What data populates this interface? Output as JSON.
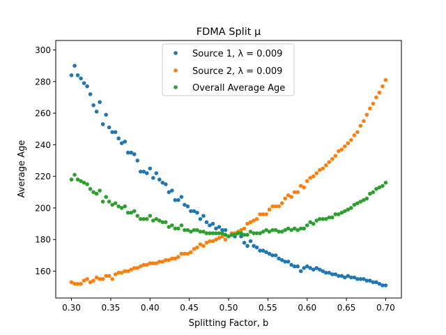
{
  "chart_data": {
    "type": "scatter",
    "title": "FDMA Split μ",
    "xlabel": "Splitting Factor, b",
    "ylabel": "Average Age",
    "xlim": [
      0.28,
      0.72
    ],
    "ylim": [
      143,
      306
    ],
    "xticks": [
      0.3,
      0.35,
      0.4,
      0.45,
      0.5,
      0.55,
      0.6,
      0.65,
      0.7
    ],
    "xtick_labels": [
      "0.30",
      "0.35",
      "0.40",
      "0.45",
      "0.50",
      "0.55",
      "0.60",
      "0.65",
      "0.70"
    ],
    "yticks": [
      160,
      180,
      200,
      220,
      240,
      260,
      280,
      300
    ],
    "ytick_labels": [
      "160",
      "180",
      "200",
      "220",
      "240",
      "260",
      "280",
      "300"
    ],
    "grid": false,
    "legend_position": "top-center",
    "x": [
      0.3,
      0.304,
      0.308,
      0.312,
      0.316,
      0.32,
      0.324,
      0.328,
      0.332,
      0.336,
      0.34,
      0.344,
      0.348,
      0.352,
      0.356,
      0.36,
      0.364,
      0.368,
      0.372,
      0.376,
      0.38,
      0.384,
      0.388,
      0.392,
      0.396,
      0.4,
      0.404,
      0.408,
      0.412,
      0.416,
      0.42,
      0.424,
      0.428,
      0.432,
      0.436,
      0.44,
      0.444,
      0.448,
      0.452,
      0.456,
      0.46,
      0.464,
      0.468,
      0.472,
      0.476,
      0.48,
      0.484,
      0.488,
      0.492,
      0.496,
      0.5,
      0.504,
      0.508,
      0.512,
      0.516,
      0.52,
      0.524,
      0.528,
      0.532,
      0.536,
      0.54,
      0.544,
      0.548,
      0.552,
      0.556,
      0.56,
      0.564,
      0.568,
      0.572,
      0.576,
      0.58,
      0.584,
      0.588,
      0.592,
      0.596,
      0.6,
      0.604,
      0.608,
      0.612,
      0.616,
      0.62,
      0.624,
      0.628,
      0.632,
      0.636,
      0.64,
      0.644,
      0.648,
      0.652,
      0.656,
      0.66,
      0.664,
      0.668,
      0.672,
      0.676,
      0.68,
      0.684,
      0.688,
      0.692,
      0.696,
      0.7
    ],
    "series": [
      {
        "name": "Source 1, λ = 0.009",
        "color": "#1f77b4",
        "values": [
          284,
          290,
          284,
          282,
          279,
          277,
          272,
          265,
          261,
          267,
          253,
          259,
          251,
          248,
          248,
          244,
          241,
          242,
          235,
          235,
          234,
          230,
          223,
          223,
          222,
          225,
          219,
          222,
          218,
          216,
          215,
          210,
          211,
          205,
          205,
          207,
          202,
          201,
          198,
          198,
          197,
          193,
          195,
          191,
          189,
          190,
          187,
          188,
          186,
          186,
          182,
          183,
          182,
          184,
          182,
          178,
          176,
          179,
          176,
          175,
          173,
          173,
          172,
          171,
          170,
          170,
          168,
          167,
          166,
          166,
          164,
          163,
          163,
          160,
          162,
          163,
          162,
          161,
          162,
          161,
          160,
          159,
          159,
          158,
          158,
          157,
          157,
          156,
          157,
          156,
          156,
          155,
          155,
          155,
          154,
          154,
          153,
          153,
          152,
          151,
          151
        ]
      },
      {
        "name": "Source 2, λ = 0.009",
        "color": "#ff7f0e",
        "values": [
          153,
          152,
          152,
          152,
          154,
          155,
          153,
          154,
          156,
          155,
          155,
          157,
          157,
          155,
          158,
          159,
          159,
          160,
          160,
          161,
          162,
          162,
          163,
          164,
          164,
          165,
          165,
          165,
          166,
          166,
          167,
          167,
          168,
          168,
          169,
          171,
          171,
          171,
          172,
          174,
          175,
          177,
          176,
          178,
          179,
          179,
          180,
          181,
          182,
          180,
          182,
          184,
          184,
          185,
          186,
          187,
          190,
          191,
          192,
          193,
          196,
          196,
          196,
          199,
          201,
          201,
          201,
          203,
          206,
          208,
          207,
          210,
          210,
          214,
          213,
          217,
          219,
          220,
          222,
          224,
          225,
          227,
          229,
          231,
          233,
          236,
          237,
          239,
          241,
          243,
          246,
          248,
          252,
          255,
          259,
          263,
          266,
          270,
          273,
          277,
          281
        ]
      },
      {
        "name": "Overall Average Age",
        "color": "#2ca02c",
        "values": [
          218,
          221,
          218,
          217,
          216,
          215,
          212,
          210,
          209,
          211,
          204,
          207,
          204,
          202,
          203,
          201,
          200,
          201,
          197,
          197,
          198,
          195,
          193,
          193,
          193,
          195,
          192,
          193,
          192,
          191,
          191,
          188,
          189,
          187,
          187,
          189,
          186,
          186,
          185,
          186,
          186,
          185,
          185,
          184,
          184,
          184,
          184,
          184,
          184,
          183,
          182,
          183,
          183,
          184,
          184,
          183,
          183,
          185,
          184,
          184,
          184,
          185,
          186,
          185,
          186,
          186,
          185,
          185,
          186,
          187,
          186,
          187,
          186,
          187,
          187,
          189,
          191,
          190,
          192,
          193,
          193,
          193,
          194,
          194,
          196,
          196,
          197,
          198,
          199,
          200,
          202,
          203,
          204,
          205,
          206,
          209,
          210,
          212,
          213,
          214,
          216
        ]
      }
    ]
  }
}
